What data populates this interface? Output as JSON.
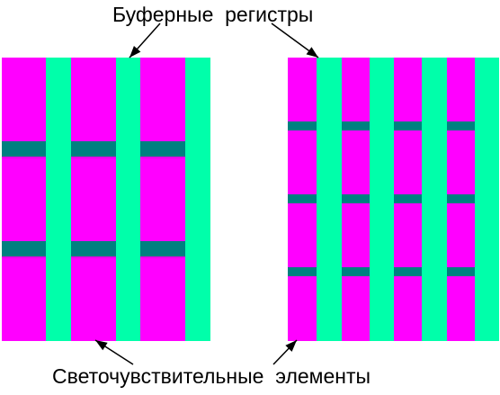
{
  "labels": {
    "top": "Буферные  регистры",
    "bottom": "Светочувствительные  элементы"
  },
  "colors": {
    "photosensitive": "#ff00ff",
    "buffer_register": "#00ffaa",
    "transfer_gate": "#008080",
    "arrow": "#000000",
    "background": "#ffffff"
  },
  "left_panel": {
    "columns": 3,
    "cells_per_column": 3
  },
  "right_panel": {
    "columns": 4,
    "cells_per_column": 4
  }
}
